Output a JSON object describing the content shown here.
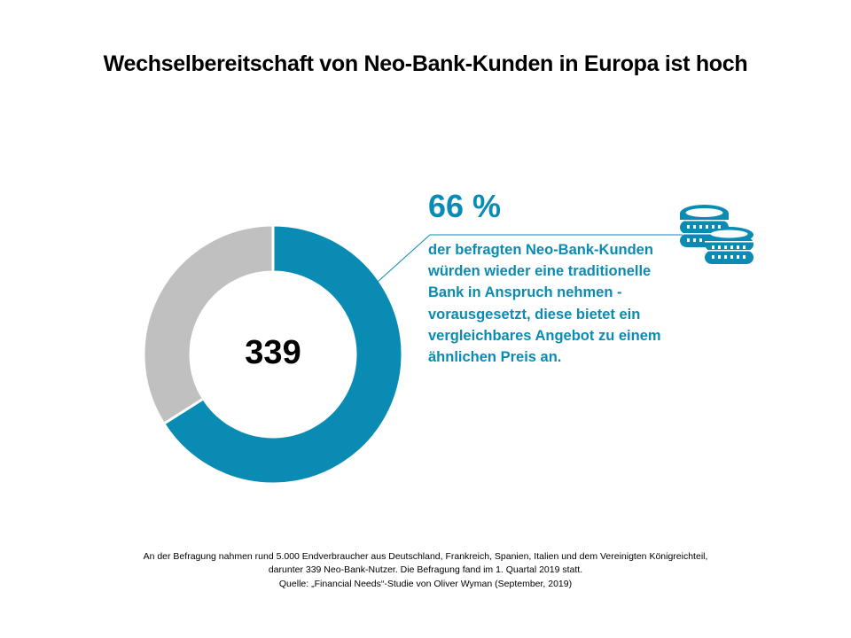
{
  "title": "Wechselbereitschaft von Neo-Bank-Kunden in Europa ist hoch",
  "highlight": {
    "value_label": "66 %",
    "description_lines": [
      "der befragten Neo-Bank-Kunden",
      "würden wieder eine traditionelle",
      "Bank in Anspruch nehmen -",
      "vorausgesetzt, diese bietet ein",
      "vergleichbares Angebot zu einem",
      "ähnlichen Preis an."
    ]
  },
  "footnote_lines": [
    "An der Befragung nahmen rund 5.000 Endverbraucher aus Deutschland, Frankreich, Spanien, Italien und dem Vereinigten Königreichteil,",
    "darunter 339 Neo-Bank-Nutzer. Die Befragung fand im 1. Quartal 2019 statt.",
    "Quelle: „Financial Needs“-Studie von Oliver Wyman (September, 2019)"
  ],
  "icon": "coin-stacks-icon",
  "chart_data": {
    "type": "pie",
    "donut": true,
    "center_label": "339",
    "slices": [
      {
        "value": 66,
        "color": "#0a8bb4"
      },
      {
        "value": 34,
        "color": "#c0c0c0"
      }
    ]
  }
}
